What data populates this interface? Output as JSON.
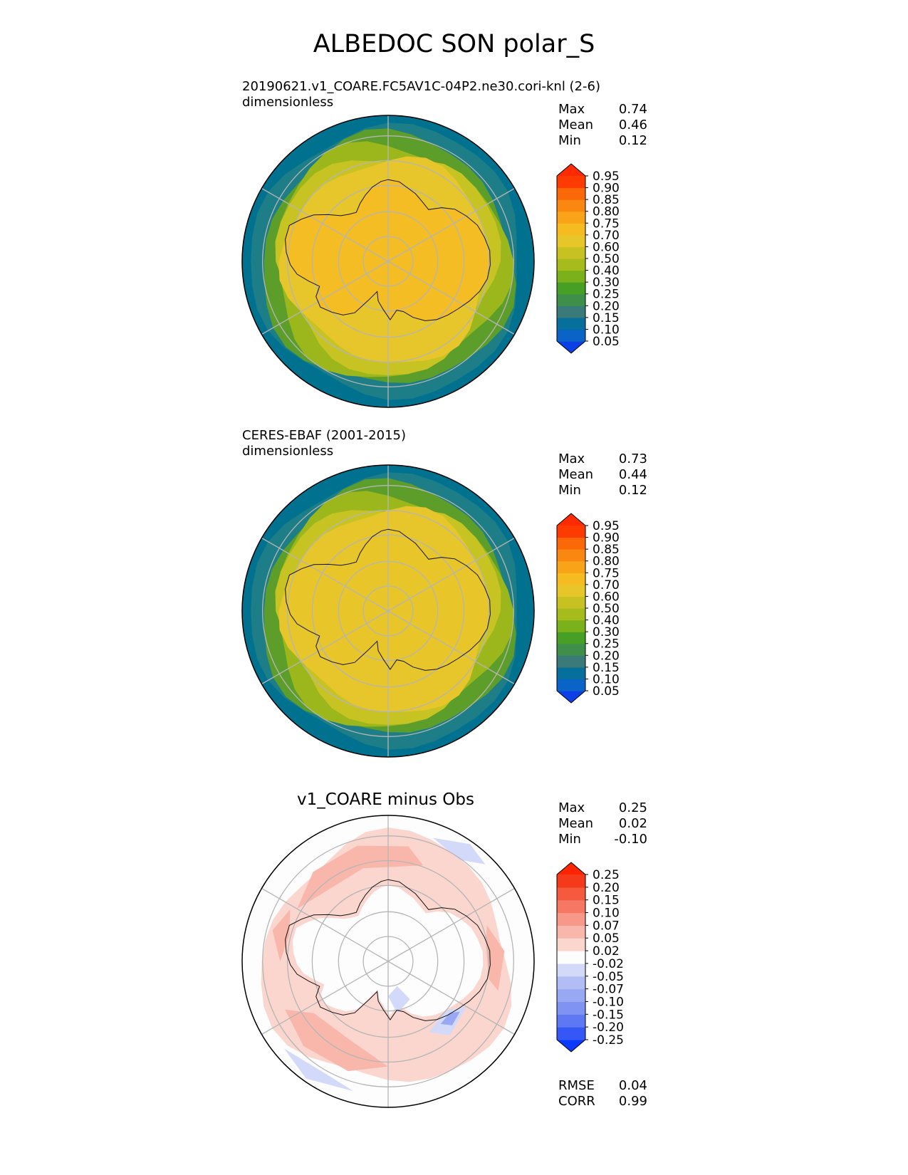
{
  "main_title": "ALBEDOC SON polar_S",
  "panels": [
    {
      "id": "test",
      "title_line1": "20190621.v1_COARE.FC5AV1C-04P2.ne30.cori-knl (2-6)",
      "title_line2": "dimensionless",
      "stats": [
        {
          "label": "Max",
          "value": "0.74"
        },
        {
          "label": "Mean",
          "value": "0.46"
        },
        {
          "label": "Min",
          "value": "0.12"
        }
      ],
      "colorbar": {
        "levels": [
          "0.05",
          "0.10",
          "0.15",
          "0.20",
          "0.25",
          "0.30",
          "0.40",
          "0.50",
          "0.60",
          "0.70",
          "0.75",
          "0.80",
          "0.85",
          "0.90",
          "0.95"
        ],
        "colors": [
          "#0d3fe6",
          "#0a63c6",
          "#066f9c",
          "#3a7a78",
          "#3f8e4a",
          "#47a025",
          "#7bb11a",
          "#a5bc1c",
          "#c8c122",
          "#e6c628",
          "#f7bb22",
          "#f9a318",
          "#fa8710",
          "#fb6808",
          "#fd3a02",
          "#ff2a00"
        ],
        "extend": "both"
      },
      "map": {
        "ocean": "#00728f",
        "ring_colors": [
          "#00728f",
          "#1d7e87",
          "#5d9e2b",
          "#9bb71c",
          "#c7c323",
          "#e6c62a"
        ],
        "continent_fill": "#f5bd24"
      }
    },
    {
      "id": "reference",
      "title_line1": "CERES-EBAF (2001-2015)",
      "title_line2": "dimensionless",
      "stats": [
        {
          "label": "Max",
          "value": "0.73"
        },
        {
          "label": "Mean",
          "value": "0.44"
        },
        {
          "label": "Min",
          "value": "0.12"
        }
      ],
      "colorbar": {
        "levels": [
          "0.05",
          "0.10",
          "0.15",
          "0.20",
          "0.25",
          "0.30",
          "0.40",
          "0.50",
          "0.60",
          "0.70",
          "0.75",
          "0.80",
          "0.85",
          "0.90",
          "0.95"
        ],
        "colors": [
          "#0d3fe6",
          "#0a63c6",
          "#066f9c",
          "#3a7a78",
          "#3f8e4a",
          "#47a025",
          "#7bb11a",
          "#a5bc1c",
          "#c8c122",
          "#e6c628",
          "#f7bb22",
          "#f9a318",
          "#fa8710",
          "#fb6808",
          "#fd3a02",
          "#ff2a00"
        ],
        "extend": "both"
      },
      "map": {
        "ocean": "#00728f",
        "ring_colors": [
          "#00728f",
          "#1d7e87",
          "#5d9e2b",
          "#9bb71c",
          "#c7c323",
          "#e6c62a"
        ],
        "continent_fill": "#e8c62a"
      }
    },
    {
      "id": "difference",
      "title": "v1_COARE minus Obs",
      "stats": [
        {
          "label": "Max",
          "value": "0.25"
        },
        {
          "label": "Mean",
          "value": "0.02"
        },
        {
          "label": "Min",
          "value": "-0.10"
        }
      ],
      "extra_stats": [
        {
          "label": "RMSE",
          "value": "0.04"
        },
        {
          "label": "CORR",
          "value": "0.99"
        }
      ],
      "colorbar": {
        "levels": [
          "-0.25",
          "-0.20",
          "-0.15",
          "-0.10",
          "-0.07",
          "-0.05",
          "-0.02",
          "0.02",
          "0.05",
          "0.07",
          "0.10",
          "0.15",
          "0.20",
          "0.25"
        ],
        "colors": [
          "#0a3aff",
          "#3457f5",
          "#5d78f2",
          "#7f93f3",
          "#98a8f3",
          "#b2bdf5",
          "#d3d9f8",
          "#fdfdfd",
          "#fbd6cf",
          "#f9b7ab",
          "#f79888",
          "#f57764",
          "#f55a3f",
          "#f53a1b",
          "#ff2400"
        ],
        "extend": "both"
      },
      "map": {
        "ocean": "#fdfdfd",
        "positive": "#f9b7ab",
        "positive_light": "#fbd6cf",
        "negative": "#d3d9f8",
        "negative_strong": "#98a8f3"
      }
    }
  ],
  "grid_color": "#b5b5b5",
  "coast_color": "#111111"
}
